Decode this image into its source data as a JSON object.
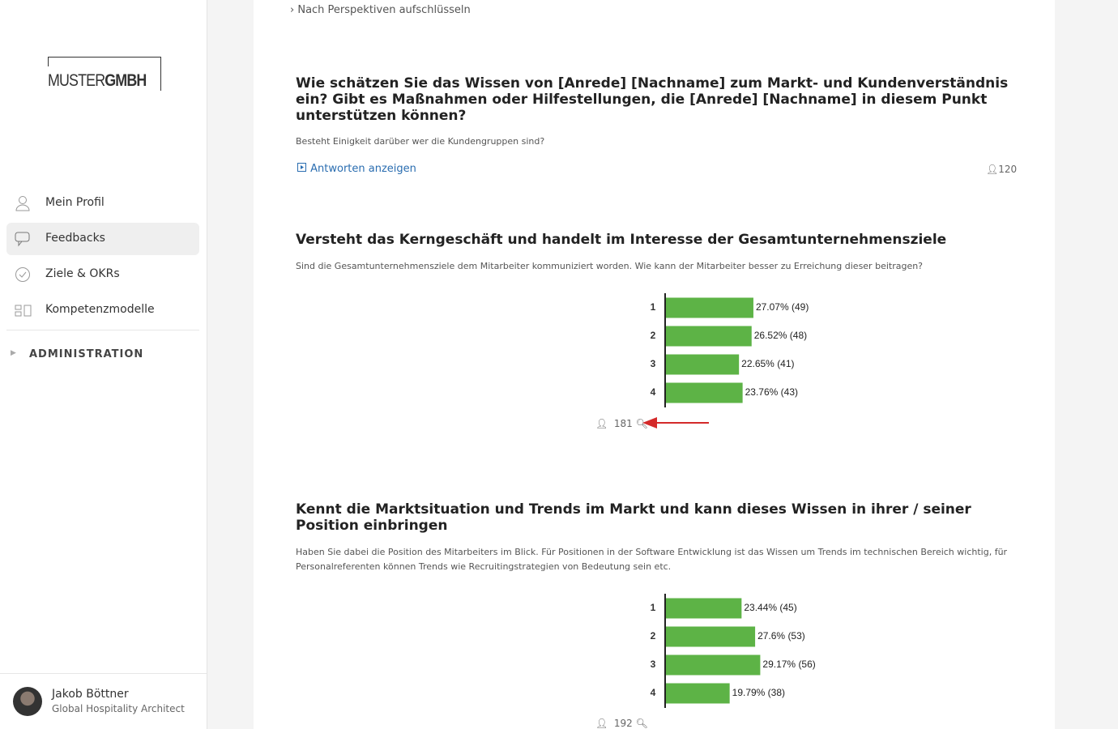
{
  "sidebar": {
    "logo": {
      "light": "MUSTER",
      "bold": "GMBH"
    },
    "nav": [
      "Mein Profil",
      "Feedbacks",
      "Ziele & OKRs",
      "Kompetenzmodelle"
    ],
    "section": "ADMINISTRATION",
    "user": {
      "name": "Jakob Böttner",
      "role": "Global Hospitality Architect"
    }
  },
  "breakdown_link": "Nach Perspektiven aufschlüsseln",
  "questions": [
    {
      "title": "Wie schätzen Sie das Wissen von [Anrede] [Nachname] zum Markt- und Kundenverständnis ein? Gibt es Maßnahmen oder Hilfestellungen, die [Anrede] [Nachname] in diesem Punkt unterstützen können?",
      "description": "Besteht Einigkeit darüber wer die Kundengruppen sind?",
      "link": "Antworten anzeigen",
      "count": 120
    },
    {
      "title": "Versteht das Kerngeschäft und handelt im Interesse der Gesamtunternehmensziele",
      "description": "Sind die Gesamtunternehmensziele dem Mitarbeiter kommuniziert worden. Wie kann der Mitarbeiter besser zu Erreichung dieser beitragen?",
      "count": 181,
      "chart": {
        "type": "bar",
        "orientation": "horizontal",
        "categories": [
          "1",
          "2",
          "3",
          "4"
        ],
        "values": [
          27.07,
          26.52,
          22.65,
          23.76
        ],
        "value_labels": [
          "27.07% (49)",
          "26.52% (48)",
          "22.65% (41)",
          "23.76% (43)"
        ],
        "color": "#5db346",
        "xlim": [
          0,
          80
        ]
      }
    },
    {
      "title": "Kennt die Marktsituation und Trends im Markt und kann dieses Wissen in ihrer / seiner Position einbringen",
      "description": "Haben Sie dabei die Position des Mitarbeiters im Blick. Für Positionen in der Software Entwicklung ist das Wissen um Trends im technischen Bereich wichtig, für Personalreferenten können Trends wie Recruitingstrategien von Bedeutung sein etc.",
      "count": 192,
      "chart": {
        "type": "bar",
        "orientation": "horizontal",
        "categories": [
          "1",
          "2",
          "3",
          "4"
        ],
        "values": [
          23.44,
          27.6,
          29.17,
          19.79
        ],
        "value_labels": [
          "23.44% (45)",
          "27.6% (53)",
          "29.17% (56)",
          "19.79% (38)"
        ],
        "color": "#5db346",
        "xlim": [
          0,
          80
        ]
      }
    }
  ]
}
